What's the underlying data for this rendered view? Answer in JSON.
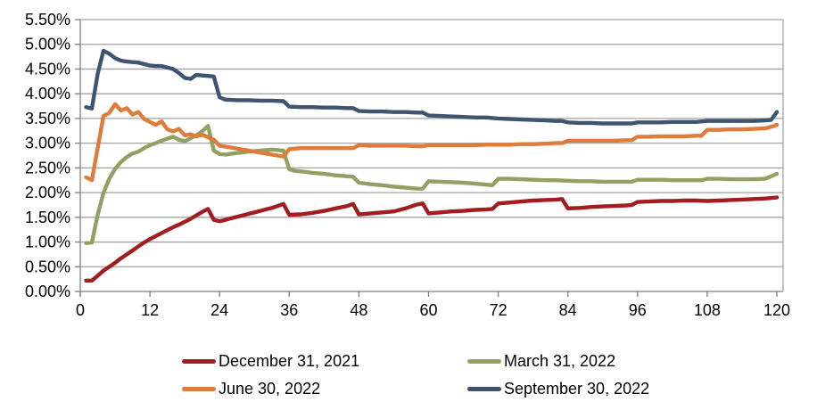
{
  "chart_data": {
    "type": "line",
    "title": "",
    "xlabel": "",
    "ylabel": "",
    "grid": true,
    "legend_position": "bottom",
    "x_axis": {
      "min": 0,
      "max": 120,
      "tick_step": 12,
      "tick_labels": [
        "0",
        "12",
        "24",
        "36",
        "48",
        "60",
        "72",
        "84",
        "96",
        "108",
        "120"
      ]
    },
    "y_axis": {
      "min": 0,
      "max": 5.5,
      "tick_step": 0.5,
      "format": "percent",
      "tick_labels": [
        "0.00%",
        "0.50%",
        "1.00%",
        "1.50%",
        "2.00%",
        "2.50%",
        "3.00%",
        "3.50%",
        "4.00%",
        "4.50%",
        "5.00%",
        "5.50%"
      ]
    },
    "series": [
      {
        "name": "December 31, 2021",
        "color": "#A11D20",
        "points": [
          [
            1,
            0.22
          ],
          [
            2,
            0.22
          ],
          [
            3,
            0.32
          ],
          [
            4,
            0.42
          ],
          [
            5,
            0.5
          ],
          [
            6,
            0.58
          ],
          [
            7,
            0.67
          ],
          [
            8,
            0.75
          ],
          [
            9,
            0.83
          ],
          [
            10,
            0.91
          ],
          [
            11,
            0.99
          ],
          [
            12,
            1.06
          ],
          [
            13,
            1.12
          ],
          [
            14,
            1.18
          ],
          [
            15,
            1.24
          ],
          [
            16,
            1.3
          ],
          [
            17,
            1.35
          ],
          [
            18,
            1.41
          ],
          [
            19,
            1.47
          ],
          [
            20,
            1.54
          ],
          [
            21,
            1.61
          ],
          [
            22,
            1.67
          ],
          [
            23,
            1.45
          ],
          [
            24,
            1.42
          ],
          [
            25,
            1.45
          ],
          [
            26,
            1.48
          ],
          [
            27,
            1.51
          ],
          [
            28,
            1.54
          ],
          [
            29,
            1.57
          ],
          [
            30,
            1.6
          ],
          [
            31,
            1.63
          ],
          [
            32,
            1.66
          ],
          [
            33,
            1.69
          ],
          [
            34,
            1.73
          ],
          [
            35,
            1.77
          ],
          [
            36,
            1.55
          ],
          [
            38,
            1.56
          ],
          [
            40,
            1.59
          ],
          [
            42,
            1.63
          ],
          [
            44,
            1.68
          ],
          [
            46,
            1.73
          ],
          [
            47,
            1.77
          ],
          [
            48,
            1.56
          ],
          [
            50,
            1.58
          ],
          [
            52,
            1.6
          ],
          [
            54,
            1.62
          ],
          [
            56,
            1.68
          ],
          [
            58,
            1.76
          ],
          [
            59,
            1.78
          ],
          [
            60,
            1.58
          ],
          [
            62,
            1.6
          ],
          [
            64,
            1.62
          ],
          [
            66,
            1.63
          ],
          [
            68,
            1.65
          ],
          [
            70,
            1.66
          ],
          [
            71,
            1.67
          ],
          [
            72,
            1.78
          ],
          [
            74,
            1.8
          ],
          [
            76,
            1.82
          ],
          [
            78,
            1.84
          ],
          [
            80,
            1.85
          ],
          [
            82,
            1.86
          ],
          [
            83,
            1.87
          ],
          [
            84,
            1.68
          ],
          [
            86,
            1.69
          ],
          [
            88,
            1.71
          ],
          [
            90,
            1.72
          ],
          [
            92,
            1.73
          ],
          [
            94,
            1.74
          ],
          [
            95,
            1.75
          ],
          [
            96,
            1.81
          ],
          [
            98,
            1.82
          ],
          [
            100,
            1.83
          ],
          [
            102,
            1.83
          ],
          [
            104,
            1.84
          ],
          [
            106,
            1.84
          ],
          [
            108,
            1.83
          ],
          [
            110,
            1.84
          ],
          [
            112,
            1.85
          ],
          [
            114,
            1.86
          ],
          [
            116,
            1.87
          ],
          [
            118,
            1.88
          ],
          [
            120,
            1.9
          ]
        ]
      },
      {
        "name": "March 31, 2022",
        "color": "#92A163",
        "points": [
          [
            1,
            0.98
          ],
          [
            2,
            0.99
          ],
          [
            3,
            1.55
          ],
          [
            4,
            1.99
          ],
          [
            5,
            2.28
          ],
          [
            6,
            2.48
          ],
          [
            7,
            2.62
          ],
          [
            8,
            2.72
          ],
          [
            9,
            2.79
          ],
          [
            10,
            2.83
          ],
          [
            11,
            2.9
          ],
          [
            12,
            2.96
          ],
          [
            13,
            3.0
          ],
          [
            14,
            3.05
          ],
          [
            15,
            3.09
          ],
          [
            16,
            3.13
          ],
          [
            17,
            3.07
          ],
          [
            18,
            3.04
          ],
          [
            19,
            3.1
          ],
          [
            20,
            3.16
          ],
          [
            21,
            3.24
          ],
          [
            22,
            3.35
          ],
          [
            23,
            2.85
          ],
          [
            24,
            2.78
          ],
          [
            25,
            2.77
          ],
          [
            27,
            2.8
          ],
          [
            29,
            2.83
          ],
          [
            31,
            2.85
          ],
          [
            33,
            2.87
          ],
          [
            35,
            2.85
          ],
          [
            36,
            2.47
          ],
          [
            37,
            2.44
          ],
          [
            38,
            2.43
          ],
          [
            40,
            2.4
          ],
          [
            42,
            2.38
          ],
          [
            44,
            2.35
          ],
          [
            46,
            2.33
          ],
          [
            47,
            2.32
          ],
          [
            48,
            2.2
          ],
          [
            50,
            2.17
          ],
          [
            52,
            2.15
          ],
          [
            54,
            2.12
          ],
          [
            56,
            2.1
          ],
          [
            58,
            2.08
          ],
          [
            59,
            2.08
          ],
          [
            60,
            2.23
          ],
          [
            62,
            2.22
          ],
          [
            64,
            2.21
          ],
          [
            66,
            2.2
          ],
          [
            68,
            2.18
          ],
          [
            70,
            2.16
          ],
          [
            71,
            2.15
          ],
          [
            72,
            2.28
          ],
          [
            74,
            2.28
          ],
          [
            76,
            2.27
          ],
          [
            78,
            2.26
          ],
          [
            80,
            2.25
          ],
          [
            82,
            2.25
          ],
          [
            84,
            2.24
          ],
          [
            86,
            2.23
          ],
          [
            88,
            2.23
          ],
          [
            90,
            2.22
          ],
          [
            92,
            2.22
          ],
          [
            94,
            2.22
          ],
          [
            95,
            2.22
          ],
          [
            96,
            2.26
          ],
          [
            98,
            2.26
          ],
          [
            100,
            2.26
          ],
          [
            102,
            2.25
          ],
          [
            104,
            2.25
          ],
          [
            106,
            2.25
          ],
          [
            107,
            2.25
          ],
          [
            108,
            2.28
          ],
          [
            110,
            2.28
          ],
          [
            112,
            2.27
          ],
          [
            114,
            2.27
          ],
          [
            116,
            2.27
          ],
          [
            118,
            2.28
          ],
          [
            119,
            2.33
          ],
          [
            120,
            2.38
          ]
        ]
      },
      {
        "name": "June 30, 2022",
        "color": "#DD7C3B",
        "points": [
          [
            1,
            2.31
          ],
          [
            2,
            2.25
          ],
          [
            3,
            2.9
          ],
          [
            4,
            3.55
          ],
          [
            5,
            3.61
          ],
          [
            6,
            3.79
          ],
          [
            7,
            3.66
          ],
          [
            8,
            3.71
          ],
          [
            9,
            3.58
          ],
          [
            10,
            3.63
          ],
          [
            11,
            3.49
          ],
          [
            12,
            3.43
          ],
          [
            13,
            3.37
          ],
          [
            14,
            3.44
          ],
          [
            15,
            3.28
          ],
          [
            16,
            3.24
          ],
          [
            17,
            3.29
          ],
          [
            18,
            3.16
          ],
          [
            19,
            3.18
          ],
          [
            20,
            3.14
          ],
          [
            21,
            3.17
          ],
          [
            22,
            3.12
          ],
          [
            23,
            3.07
          ],
          [
            24,
            2.95
          ],
          [
            26,
            2.91
          ],
          [
            28,
            2.87
          ],
          [
            30,
            2.83
          ],
          [
            32,
            2.79
          ],
          [
            34,
            2.75
          ],
          [
            35,
            2.73
          ],
          [
            36,
            2.88
          ],
          [
            38,
            2.9
          ],
          [
            40,
            2.9
          ],
          [
            42,
            2.9
          ],
          [
            44,
            2.9
          ],
          [
            46,
            2.9
          ],
          [
            47,
            2.9
          ],
          [
            48,
            2.96
          ],
          [
            50,
            2.95
          ],
          [
            52,
            2.95
          ],
          [
            54,
            2.95
          ],
          [
            56,
            2.95
          ],
          [
            58,
            2.94
          ],
          [
            59,
            2.94
          ],
          [
            60,
            2.96
          ],
          [
            62,
            2.96
          ],
          [
            64,
            2.96
          ],
          [
            66,
            2.96
          ],
          [
            68,
            2.96
          ],
          [
            70,
            2.97
          ],
          [
            72,
            2.97
          ],
          [
            74,
            2.97
          ],
          [
            76,
            2.98
          ],
          [
            78,
            2.98
          ],
          [
            80,
            2.99
          ],
          [
            82,
            3.0
          ],
          [
            83,
            3.0
          ],
          [
            84,
            3.05
          ],
          [
            86,
            3.05
          ],
          [
            88,
            3.05
          ],
          [
            90,
            3.05
          ],
          [
            92,
            3.05
          ],
          [
            94,
            3.06
          ],
          [
            95,
            3.06
          ],
          [
            96,
            3.13
          ],
          [
            98,
            3.13
          ],
          [
            100,
            3.14
          ],
          [
            102,
            3.14
          ],
          [
            104,
            3.14
          ],
          [
            106,
            3.15
          ],
          [
            107,
            3.15
          ],
          [
            108,
            3.27
          ],
          [
            110,
            3.27
          ],
          [
            112,
            3.28
          ],
          [
            114,
            3.28
          ],
          [
            116,
            3.29
          ],
          [
            118,
            3.3
          ],
          [
            119,
            3.33
          ],
          [
            120,
            3.37
          ]
        ]
      },
      {
        "name": "September 30, 2022",
        "color": "#3E5471",
        "points": [
          [
            1,
            3.73
          ],
          [
            2,
            3.7
          ],
          [
            3,
            4.4
          ],
          [
            4,
            4.87
          ],
          [
            5,
            4.81
          ],
          [
            6,
            4.72
          ],
          [
            7,
            4.67
          ],
          [
            8,
            4.65
          ],
          [
            9,
            4.64
          ],
          [
            10,
            4.63
          ],
          [
            11,
            4.6
          ],
          [
            12,
            4.57
          ],
          [
            13,
            4.56
          ],
          [
            14,
            4.56
          ],
          [
            15,
            4.53
          ],
          [
            16,
            4.5
          ],
          [
            17,
            4.42
          ],
          [
            18,
            4.32
          ],
          [
            19,
            4.3
          ],
          [
            20,
            4.38
          ],
          [
            21,
            4.37
          ],
          [
            22,
            4.36
          ],
          [
            23,
            4.35
          ],
          [
            24,
            3.93
          ],
          [
            25,
            3.88
          ],
          [
            27,
            3.87
          ],
          [
            29,
            3.87
          ],
          [
            31,
            3.86
          ],
          [
            33,
            3.86
          ],
          [
            35,
            3.85
          ],
          [
            36,
            3.74
          ],
          [
            38,
            3.73
          ],
          [
            40,
            3.73
          ],
          [
            42,
            3.72
          ],
          [
            44,
            3.72
          ],
          [
            46,
            3.71
          ],
          [
            47,
            3.71
          ],
          [
            48,
            3.65
          ],
          [
            50,
            3.64
          ],
          [
            52,
            3.64
          ],
          [
            54,
            3.63
          ],
          [
            56,
            3.63
          ],
          [
            58,
            3.62
          ],
          [
            59,
            3.62
          ],
          [
            60,
            3.56
          ],
          [
            62,
            3.55
          ],
          [
            64,
            3.54
          ],
          [
            66,
            3.53
          ],
          [
            68,
            3.52
          ],
          [
            70,
            3.52
          ],
          [
            71,
            3.51
          ],
          [
            72,
            3.5
          ],
          [
            74,
            3.49
          ],
          [
            76,
            3.48
          ],
          [
            78,
            3.47
          ],
          [
            80,
            3.46
          ],
          [
            82,
            3.45
          ],
          [
            83,
            3.45
          ],
          [
            84,
            3.42
          ],
          [
            86,
            3.41
          ],
          [
            88,
            3.41
          ],
          [
            90,
            3.4
          ],
          [
            92,
            3.4
          ],
          [
            94,
            3.4
          ],
          [
            95,
            3.4
          ],
          [
            96,
            3.42
          ],
          [
            98,
            3.42
          ],
          [
            100,
            3.42
          ],
          [
            102,
            3.43
          ],
          [
            104,
            3.43
          ],
          [
            106,
            3.43
          ],
          [
            108,
            3.45
          ],
          [
            110,
            3.45
          ],
          [
            112,
            3.45
          ],
          [
            114,
            3.45
          ],
          [
            116,
            3.45
          ],
          [
            118,
            3.46
          ],
          [
            119,
            3.47
          ],
          [
            120,
            3.63
          ]
        ]
      }
    ]
  },
  "colors": {
    "gridline": "#A3A3A3",
    "axis": "#7F7F7F",
    "label": "#000000",
    "background": "#FFFFFF"
  }
}
